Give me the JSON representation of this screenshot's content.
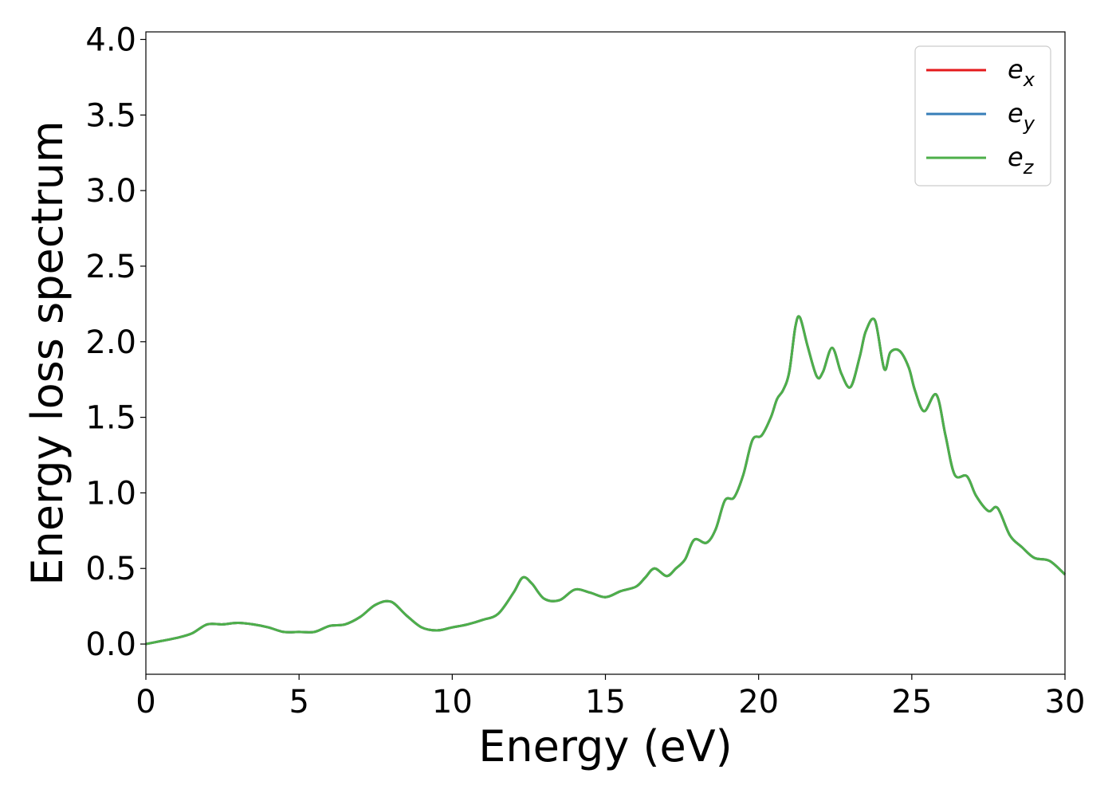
{
  "chart_data": {
    "type": "line",
    "xlabel": "Energy (eV)",
    "ylabel": "Energy loss spectrum",
    "xlim": [
      0,
      30
    ],
    "ylim": [
      -0.2,
      4.05
    ],
    "xticks": [
      0,
      5,
      10,
      15,
      20,
      25,
      30
    ],
    "yticks": [
      0.0,
      0.5,
      1.0,
      1.5,
      2.0,
      2.5,
      3.0,
      3.5,
      4.0
    ],
    "xtick_labels": [
      "0",
      "5",
      "10",
      "15",
      "20",
      "25",
      "30"
    ],
    "ytick_labels": [
      "0.0",
      "0.5",
      "1.0",
      "1.5",
      "2.0",
      "2.5",
      "3.0",
      "3.5",
      "4.0"
    ],
    "grid": false,
    "legend_position": "top-right",
    "x": [
      0,
      0.5,
      1.0,
      1.5,
      2.0,
      2.5,
      3.0,
      3.5,
      4.0,
      4.5,
      5.0,
      5.5,
      6.0,
      6.5,
      7.0,
      7.5,
      8.0,
      8.5,
      9.0,
      9.5,
      10.0,
      10.5,
      11.0,
      11.5,
      12.0,
      12.3,
      12.6,
      13.0,
      13.5,
      14.0,
      14.5,
      15.0,
      15.5,
      16.0,
      16.3,
      16.6,
      17.0,
      17.3,
      17.6,
      17.9,
      18.3,
      18.6,
      18.9,
      19.2,
      19.5,
      19.8,
      20.1,
      20.4,
      20.6,
      20.8,
      21.0,
      21.2,
      21.35,
      21.6,
      21.9,
      22.1,
      22.4,
      22.7,
      23.0,
      23.3,
      23.5,
      23.8,
      24.1,
      24.3,
      24.6,
      24.9,
      25.1,
      25.4,
      25.8,
      26.1,
      26.4,
      26.8,
      27.1,
      27.5,
      27.8,
      28.2,
      28.6,
      29.0,
      29.5,
      30.0
    ],
    "series": [
      {
        "name": "e",
        "subscript": "x",
        "color": "#e41a1c",
        "values": [
          0.0,
          0.02,
          0.04,
          0.07,
          0.13,
          0.13,
          0.14,
          0.13,
          0.11,
          0.08,
          0.08,
          0.08,
          0.12,
          0.13,
          0.18,
          0.26,
          0.28,
          0.19,
          0.11,
          0.09,
          0.11,
          0.13,
          0.16,
          0.2,
          0.34,
          0.44,
          0.4,
          0.3,
          0.29,
          0.36,
          0.34,
          0.31,
          0.35,
          0.38,
          0.44,
          0.5,
          0.45,
          0.5,
          0.56,
          0.69,
          0.67,
          0.76,
          0.95,
          0.97,
          1.12,
          1.35,
          1.38,
          1.5,
          1.62,
          1.68,
          1.8,
          2.1,
          2.16,
          1.97,
          1.77,
          1.8,
          1.96,
          1.79,
          1.7,
          1.9,
          2.07,
          2.14,
          1.82,
          1.93,
          1.94,
          1.83,
          1.68,
          1.54,
          1.65,
          1.38,
          1.12,
          1.11,
          0.98,
          0.88,
          0.9,
          0.72,
          0.64,
          0.57,
          0.55,
          0.46
        ]
      },
      {
        "name": "e",
        "subscript": "y",
        "color": "#377eb8",
        "values": [
          0.0,
          0.02,
          0.04,
          0.07,
          0.13,
          0.13,
          0.14,
          0.13,
          0.11,
          0.08,
          0.08,
          0.08,
          0.12,
          0.13,
          0.18,
          0.26,
          0.28,
          0.19,
          0.11,
          0.09,
          0.11,
          0.13,
          0.16,
          0.2,
          0.34,
          0.44,
          0.4,
          0.3,
          0.29,
          0.36,
          0.34,
          0.31,
          0.35,
          0.38,
          0.44,
          0.5,
          0.45,
          0.5,
          0.56,
          0.69,
          0.67,
          0.76,
          0.95,
          0.97,
          1.12,
          1.35,
          1.38,
          1.5,
          1.62,
          1.68,
          1.8,
          2.1,
          2.16,
          1.97,
          1.77,
          1.8,
          1.96,
          1.79,
          1.7,
          1.9,
          2.07,
          2.14,
          1.82,
          1.93,
          1.94,
          1.83,
          1.68,
          1.54,
          1.65,
          1.38,
          1.12,
          1.11,
          0.98,
          0.88,
          0.9,
          0.72,
          0.64,
          0.57,
          0.55,
          0.46
        ]
      },
      {
        "name": "e",
        "subscript": "z",
        "color": "#4daf4a",
        "values": [
          0.0,
          0.02,
          0.04,
          0.07,
          0.13,
          0.13,
          0.14,
          0.13,
          0.11,
          0.08,
          0.08,
          0.08,
          0.12,
          0.13,
          0.18,
          0.26,
          0.28,
          0.19,
          0.11,
          0.09,
          0.11,
          0.13,
          0.16,
          0.2,
          0.34,
          0.44,
          0.4,
          0.3,
          0.29,
          0.36,
          0.34,
          0.31,
          0.35,
          0.38,
          0.44,
          0.5,
          0.45,
          0.5,
          0.56,
          0.69,
          0.67,
          0.76,
          0.95,
          0.97,
          1.12,
          1.35,
          1.38,
          1.5,
          1.62,
          1.68,
          1.8,
          2.1,
          2.16,
          1.97,
          1.77,
          1.8,
          1.96,
          1.79,
          1.7,
          1.9,
          2.07,
          2.14,
          1.82,
          1.93,
          1.94,
          1.83,
          1.68,
          1.54,
          1.65,
          1.38,
          1.12,
          1.11,
          0.98,
          0.88,
          0.9,
          0.72,
          0.64,
          0.57,
          0.55,
          0.46
        ]
      }
    ]
  }
}
